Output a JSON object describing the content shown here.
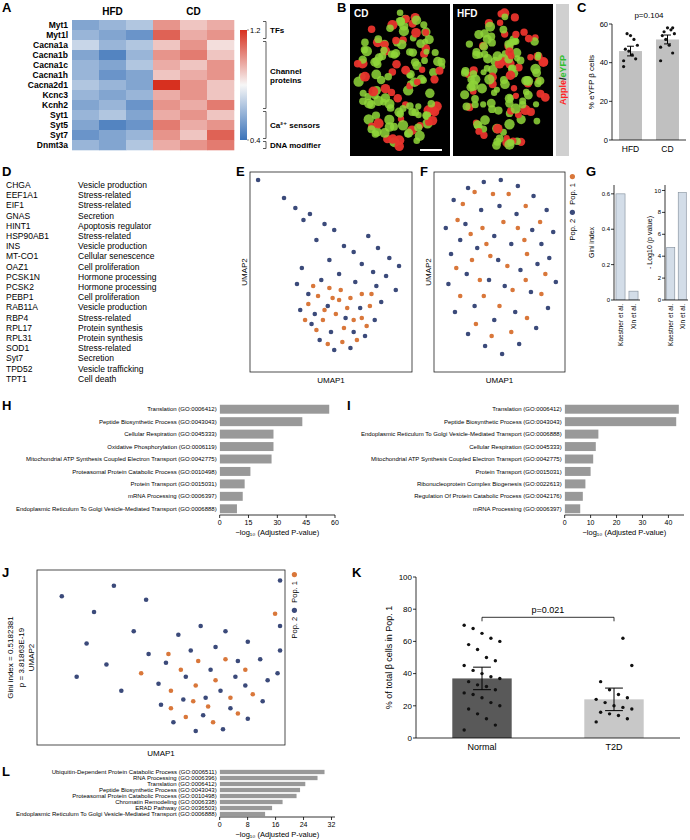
{
  "chart_data": [
    {
      "panel": "A",
      "type": "heatmap",
      "column_groups": [
        {
          "name": "HFD",
          "count": 3
        },
        {
          "name": "CD",
          "count": 3
        }
      ],
      "categories": [
        "Myt1",
        "Myt1l",
        "Cacna1a",
        "Cacna1b",
        "Cacna1c",
        "Cacna1h",
        "Cacna2d1",
        "Kcnc3",
        "Kcnh2",
        "Syt1",
        "Syt5",
        "Syt7",
        "Dnmt3a"
      ],
      "cells": [
        [
          0.55,
          0.6,
          0.65,
          1.0,
          0.9,
          0.95
        ],
        [
          0.6,
          0.55,
          0.5,
          1.1,
          0.95,
          1.0
        ],
        [
          0.7,
          0.6,
          0.65,
          0.9,
          1.0,
          0.85
        ],
        [
          0.55,
          0.45,
          0.6,
          1.0,
          1.05,
          0.9
        ],
        [
          0.6,
          0.55,
          0.65,
          0.95,
          0.9,
          1.0
        ],
        [
          0.6,
          0.5,
          0.55,
          0.9,
          0.95,
          1.0
        ],
        [
          0.65,
          0.6,
          0.55,
          1.2,
          1.0,
          0.9
        ],
        [
          0.6,
          0.55,
          0.6,
          0.95,
          1.0,
          0.9
        ],
        [
          0.55,
          0.6,
          0.5,
          1.0,
          0.95,
          1.05
        ],
        [
          0.6,
          0.65,
          0.55,
          0.95,
          1.0,
          0.9
        ],
        [
          0.55,
          0.45,
          0.5,
          1.05,
          0.95,
          1.0
        ],
        [
          0.5,
          0.55,
          0.6,
          1.0,
          0.9,
          1.1
        ],
        [
          0.6,
          0.55,
          0.65,
          0.95,
          1.0,
          1.05
        ]
      ],
      "row_groups": [
        {
          "name": "TFs",
          "count": 2
        },
        {
          "name": "Channel proteins",
          "count": 7
        },
        {
          "name": "Ca²⁺ sensors",
          "count": 3
        },
        {
          "name": "DNA modifier",
          "count": 1
        }
      ],
      "colorbar": {
        "range": [
          0.4,
          1.2
        ],
        "ticks": [
          0.4,
          1.2
        ],
        "colormap": [
          "#3b73b9",
          "#f7f7f7",
          "#d7301f"
        ]
      }
    },
    {
      "panel": "C",
      "type": "bar",
      "categories": [
        "HFD",
        "CD"
      ],
      "values": [
        46,
        52
      ],
      "errors": [
        2.5,
        2.3
      ],
      "points": [
        [
          38,
          42,
          44,
          46,
          47,
          49,
          52,
          54,
          55,
          41
        ],
        [
          41,
          45,
          49,
          52,
          54,
          55,
          57,
          58,
          56,
          48,
          58
        ]
      ],
      "color": "#c0c0c0",
      "ylabel": "% eYFP β cells",
      "annotation": "p=0.104",
      "ylim": [
        0,
        60
      ],
      "yticks": [
        0,
        20,
        40,
        60
      ]
    },
    {
      "panel": "E",
      "type": "scatter",
      "xlabel": "UMAP1",
      "ylabel": "UMAP2",
      "tick_labels": false,
      "xlim": [
        0,
        10
      ],
      "ylim": [
        0,
        10
      ],
      "series": [
        {
          "color": "#3b4a7a",
          "x": [
            0.5,
            2.1,
            2.8,
            3.3,
            3.7,
            4.6,
            5.2,
            4.1,
            5.8,
            6.4,
            7.3,
            7.9,
            8.6,
            9.2,
            6.9,
            7.6,
            4.9,
            3.2,
            2.9,
            3.6,
            3.1,
            3.8,
            4.3,
            5.2,
            6.2,
            7.1,
            7.7,
            8.1,
            7.8,
            4.4,
            5.5,
            6.5,
            4.8,
            5.9,
            6.8,
            4.0,
            5.0,
            6.4,
            8.4,
            9.0
          ],
          "y": [
            9.6,
            8.7,
            8.2,
            7.6,
            7.9,
            7.4,
            7.1,
            6.6,
            6.3,
            6.0,
            6.8,
            6.2,
            5.7,
            5.3,
            5.4,
            5.0,
            5.6,
            5.2,
            4.4,
            3.9,
            3.1,
            2.4,
            1.6,
            1.1,
            1.2,
            1.8,
            2.6,
            3.5,
            4.3,
            4.6,
            4.9,
            4.5,
            3.3,
            2.7,
            3.2,
            2.9,
            2.0,
            2.0,
            4.8,
            4.1
          ]
        },
        {
          "color": "#d9773a",
          "x": [
            3.6,
            4.2,
            4.9,
            5.6,
            6.2,
            6.9,
            7.4,
            7.2,
            6.6,
            5.7,
            4.8,
            4.1,
            4.5,
            5.3,
            6.0,
            6.9,
            5.5,
            4.6,
            3.4,
            5.8,
            7.5,
            3.9,
            6.4,
            5.1
          ],
          "y": [
            3.4,
            3.8,
            4.2,
            4.1,
            3.7,
            3.9,
            3.3,
            2.3,
            1.6,
            1.5,
            1.4,
            2.1,
            2.6,
            2.9,
            3.2,
            2.7,
            3.6,
            3.1,
            2.6,
            2.2,
            3.9,
            4.3,
            2.6,
            3.7
          ]
        }
      ]
    },
    {
      "panel": "F",
      "type": "scatter",
      "xlabel": "UMAP1",
      "ylabel": "UMAP2",
      "tick_labels": false,
      "xlim": [
        0,
        10
      ],
      "ylim": [
        0,
        10
      ],
      "legend": "right",
      "series": [
        {
          "name": "Pop. 2",
          "color": "#3b4a7a",
          "x": [
            1.5,
            2.6,
            3.8,
            5.1,
            6.4,
            7.6,
            8.6,
            9.1,
            8.8,
            9.3,
            8.7,
            7.8,
            6.5,
            5.2,
            3.9,
            2.6,
            1.6,
            1.1,
            1.3,
            0.9,
            2.4,
            3.6,
            5.0,
            6.3,
            7.5,
            7.9,
            7.4,
            6.2,
            4.6,
            3.1,
            2.5,
            3.3,
            4.6,
            5.9,
            6.6,
            5.4,
            4.2,
            4.9,
            2.0,
            8.2
          ],
          "y": [
            8.6,
            9.2,
            9.5,
            9.6,
            9.3,
            8.8,
            8.1,
            7.0,
            5.7,
            4.5,
            3.2,
            2.2,
            1.4,
            0.9,
            1.3,
            1.9,
            3.0,
            4.4,
            5.9,
            7.2,
            7.4,
            8.1,
            8.3,
            7.9,
            7.1,
            5.4,
            4.0,
            3.0,
            2.6,
            3.3,
            4.9,
            6.2,
            6.8,
            6.4,
            5.1,
            4.3,
            4.6,
            5.6,
            6.6,
            6.4
          ]
        },
        {
          "name": "Pop. 1",
          "color": "#d9773a",
          "x": [
            2.2,
            3.1,
            4.5,
            5.7,
            7.0,
            8.1,
            8.5,
            8.2,
            7.1,
            5.9,
            4.4,
            3.2,
            2.0,
            1.7,
            1.8,
            2.9,
            3.7,
            5.3,
            6.9,
            7.1,
            6.0,
            3.8,
            4.3,
            5.6,
            6.4,
            2.8,
            3.5,
            7.0,
            5.0,
            4.0
          ],
          "y": [
            8.4,
            9.0,
            8.9,
            8.9,
            8.3,
            7.5,
            4.9,
            3.9,
            2.7,
            2.0,
            1.8,
            2.4,
            3.8,
            5.2,
            7.6,
            5.6,
            7.2,
            7.5,
            6.6,
            5.9,
            4.1,
            3.8,
            5.8,
            5.3,
            7.2,
            6.9,
            4.6,
            4.6,
            3.3,
            6.4
          ]
        }
      ]
    },
    {
      "panel": "G",
      "type": "bar",
      "categories": [
        "Kaestner et al.",
        "Xin et al."
      ],
      "values": [
        0.6,
        0.05
      ],
      "color": "#d3dde8",
      "ylabel": "Gini index",
      "ylim": [
        0,
        0.65
      ],
      "yticks": [
        0,
        0.2,
        0.4,
        0.6
      ]
    },
    {
      "type": "bar",
      "categories": [
        "Kaestner et al.",
        "Xin et al."
      ],
      "values": [
        4.8,
        9.8
      ],
      "color": "#d3dde8",
      "ylabel": "- Log10 (p value)",
      "ylim": [
        0,
        10.5
      ],
      "yticks": [
        0,
        2,
        4,
        6,
        8,
        10
      ]
    },
    {
      "panel": "H",
      "type": "bar",
      "orientation": "horizontal",
      "categories": [
        "Translation (GO:0006412)",
        "Peptide Biosynthetic Process (GO:0043043)",
        "Cellular Respiration (GO:0045333)",
        "Oxidative Phosphorylation (GO:0006119)",
        "Mitochondrial ATP Synthesis Coupled Electron Transport (GO:0042775)",
        "Proteasomal Protein Catabolic Process (GO:0010498)",
        "Protein Transport (GO:0015031)",
        "mRNA Processing (GO:0006397)",
        "Endoplasmic Reticulum To Golgi Vesicle-Mediated Transport (GO:0006888)"
      ],
      "values": [
        57,
        43,
        28,
        28,
        27,
        16,
        13,
        12,
        9
      ],
      "color": "#999999",
      "xlabel": "−log₁₀ (Adjusted P-value)",
      "xlim": [
        0,
        60
      ],
      "xticks": [
        0,
        15,
        30,
        45,
        60
      ]
    },
    {
      "panel": "I",
      "type": "bar",
      "orientation": "horizontal",
      "categories": [
        "Translation (GO:0006412)",
        "Peptide Biosynthetic Process (GO:0043043)",
        "Endoplasmic Reticulum To Golgi Vesicle-Mediated Transport (GO:0006888)",
        "Cellular Respiration (GO:0045333)",
        "Mitochondrial ATP Synthesis Coupled Electron Transport (GO:0042775)",
        "Protein Transport (GO:0015031)",
        "Ribonucleoprotein Complex Biogenesis (GO:0022613)",
        "Regulation Of Protein Catabolic Process (GO:0042176)",
        "mRNA Processing (GO:0006397)"
      ],
      "values": [
        44,
        43,
        13,
        12,
        11,
        10,
        8,
        7,
        6
      ],
      "color": "#999999",
      "xlabel": "−log₁₀ (Adjusted P-value)",
      "xlim": [
        0,
        46
      ],
      "xticks": [
        0,
        10,
        20,
        30,
        40
      ]
    },
    {
      "panel": "J",
      "type": "scatter",
      "xlabel": "UMAP1",
      "ylabel": "UMAP2",
      "tick_labels": false,
      "xlim": [
        0,
        10
      ],
      "ylim": [
        0,
        10
      ],
      "legend": "right",
      "annotations": [
        "Gini index = 0.5182381",
        "p = 3.81863E-19"
      ],
      "series": [
        {
          "name": "Pop. 2",
          "color": "#3b4a7a",
          "x": [
            1.0,
            2.3,
            3.1,
            2.0,
            3.9,
            1.6,
            2.8,
            4.4,
            3.4,
            4.5,
            9.8,
            9.8,
            9.8,
            9.7,
            5.7,
            6.6,
            7.6,
            8.5,
            9.0,
            9.3,
            9.1,
            8.5,
            7.5,
            6.4,
            5.5,
            5.0,
            4.9,
            5.2,
            6.2,
            7.2,
            8.1,
            8.4,
            7.8,
            6.7,
            5.9,
            6.0,
            7.0,
            7.4,
            6.8,
            8.0
          ],
          "y": [
            8.5,
            7.6,
            9.1,
            5.8,
            6.5,
            3.9,
            4.6,
            8.3,
            3.1,
            5.2,
            9.4,
            6.8,
            5.4,
            4.1,
            6.3,
            6.8,
            6.5,
            5.9,
            4.9,
            3.7,
            2.5,
            1.5,
            0.9,
            0.8,
            1.3,
            2.3,
            3.5,
            4.7,
            5.4,
            5.6,
            4.8,
            3.4,
            2.1,
            1.7,
            2.6,
            3.9,
            4.3,
            3.1,
            2.7,
            3.9
          ]
        },
        {
          "name": "Pop. 1",
          "color": "#d9773a",
          "x": [
            5.4,
            5.8,
            6.5,
            7.6,
            8.4,
            8.7,
            8.1,
            7.1,
            6.0,
            5.4,
            6.4,
            7.2,
            7.8,
            6.9,
            6.3,
            5.3,
            4.2,
            9.6
          ],
          "y": [
            3.1,
            4.3,
            4.8,
            4.9,
            4.3,
            2.9,
            1.8,
            1.3,
            1.6,
            2.1,
            3.4,
            3.7,
            2.7,
            2.2,
            2.5,
            5.2,
            4.1,
            7.5
          ]
        }
      ]
    },
    {
      "panel": "K",
      "type": "bar",
      "categories": [
        "Normal",
        "T2D"
      ],
      "values": [
        37,
        24
      ],
      "errors": [
        7,
        7
      ],
      "colors": [
        "#595959",
        "#c8c8c8"
      ],
      "points": [
        [
          5,
          8,
          12,
          15,
          18,
          20,
          22,
          25,
          27,
          28,
          30,
          32,
          33,
          35,
          37,
          38,
          40,
          42,
          45,
          48,
          50,
          55,
          58,
          60,
          62,
          65,
          68,
          70
        ],
        [
          10,
          12,
          14,
          15,
          16,
          18,
          19,
          20,
          22,
          24,
          25,
          27,
          30,
          35,
          45,
          62
        ]
      ],
      "ylabel": "% of total β cells in Pop. 1",
      "annotation": "p=0.021",
      "ylim": [
        0,
        100
      ],
      "yticks": [
        0,
        20,
        40,
        60,
        80,
        100
      ]
    },
    {
      "panel": "L",
      "type": "bar",
      "orientation": "horizontal",
      "categories": [
        "Ubiquitin-Dependent Protein Catabolic Process (GO:0006511)",
        "RNA Processing (GO:0006396)",
        "Translation (GO:0006412)",
        "Peptide Biosynthetic Process (GO:0043043)",
        "Proteasomal Protein Catabolic Process (GO:0010498)",
        "Chromatin Remodeling (GO:0006338)",
        "ERAD Pathway (GO:0036503)",
        "Endoplasmic Reticulum To Golgi Vesicle-Mediated Transport (GO:0006888)"
      ],
      "values": [
        30,
        28,
        24.5,
        23,
        22,
        18,
        15,
        13
      ],
      "color": "#999999",
      "xlabel": "−log₁₀ (Adjusted P-value)",
      "xlim": [
        0,
        33
      ],
      "xticks": [
        0,
        8,
        16,
        24,
        32
      ]
    }
  ],
  "image": {
    "panel": "B",
    "labels": [
      "CD",
      "HFD"
    ],
    "stain": [
      {
        "text": "Apple",
        "color": "#ff1f1f"
      },
      {
        "text": "/",
        "color": "#222222"
      },
      {
        "text": "eYFP",
        "color": "#2fbf2f"
      }
    ]
  },
  "table": {
    "panel": "D",
    "rows": [
      [
        "CHGA",
        "Vesicle production"
      ],
      [
        "EEF1A1",
        "Stress-related"
      ],
      [
        "EIF1",
        "Stress-related"
      ],
      [
        "GNAS",
        "Secretion"
      ],
      [
        "HINT1",
        "Apoptosis regulator"
      ],
      [
        "HSP90AB1",
        "Stress-related"
      ],
      [
        "INS",
        "Vesicle production"
      ],
      [
        "MT-CO1",
        "Cellular senescence"
      ],
      [
        "OAZ1",
        "Cell proliferation"
      ],
      [
        "PCSK1N",
        "Hormone processing"
      ],
      [
        "PCSK2",
        "Hormone processing"
      ],
      [
        "PEBP1",
        "Cell proliferation"
      ],
      [
        "RAB11A",
        "Vesicle production"
      ],
      [
        "RBP4",
        "Stress-related"
      ],
      [
        "RPL17",
        "Protein synthesis"
      ],
      [
        "RPL31",
        "Protein synthesis"
      ],
      [
        "SOD1",
        "Stress-related"
      ],
      [
        "Syt7",
        "Secretion"
      ],
      [
        "TPD52",
        "Vesicle trafficking"
      ],
      [
        "TPT1",
        "Cell death"
      ]
    ]
  }
}
